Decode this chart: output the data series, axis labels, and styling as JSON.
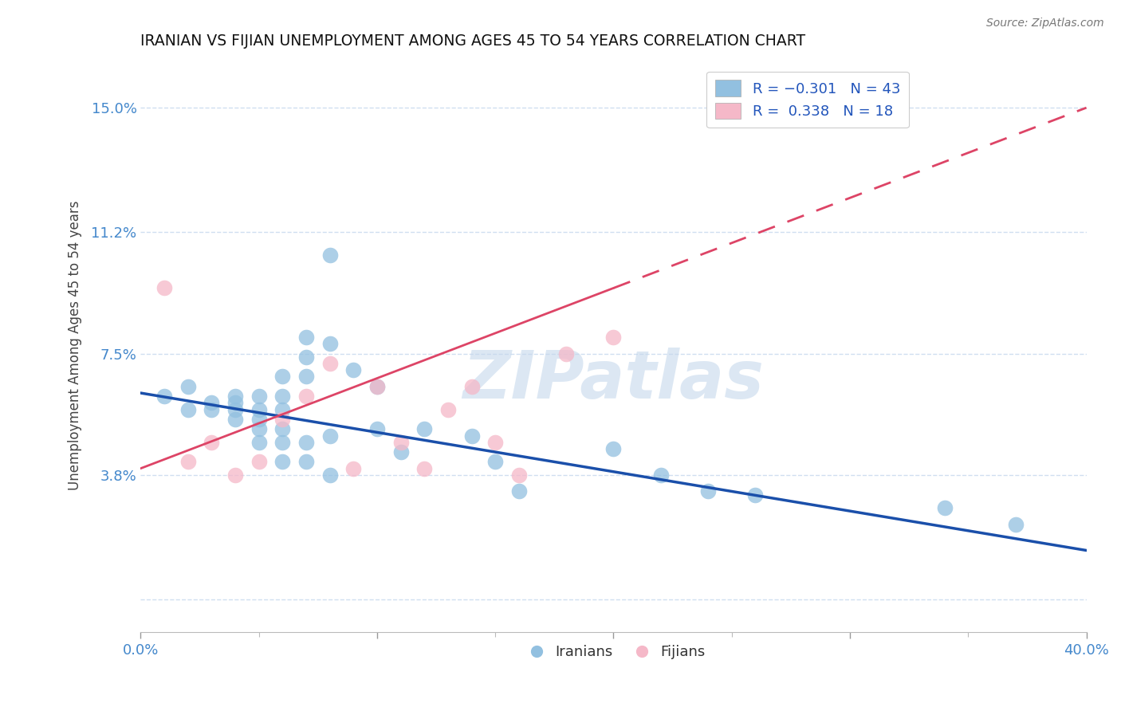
{
  "title": "IRANIAN VS FIJIAN UNEMPLOYMENT AMONG AGES 45 TO 54 YEARS CORRELATION CHART",
  "source": "Source: ZipAtlas.com",
  "ylabel_ticks": [
    0.0,
    0.038,
    0.075,
    0.112,
    0.15
  ],
  "ylabel_tick_labels": [
    "",
    "3.8%",
    "7.5%",
    "11.2%",
    "15.0%"
  ],
  "xlim": [
    0.0,
    0.4
  ],
  "ylim": [
    -0.01,
    0.165
  ],
  "watermark": "ZIPatlas",
  "iranian_color": "#92c0e0",
  "fijian_color": "#f5b8c8",
  "iranian_line_color": "#1a4faa",
  "fijian_line_color": "#dd4466",
  "background_color": "#ffffff",
  "grid_color": "#d0dff0",
  "iranians_x": [
    0.01,
    0.02,
    0.02,
    0.03,
    0.03,
    0.04,
    0.04,
    0.04,
    0.04,
    0.05,
    0.05,
    0.05,
    0.05,
    0.05,
    0.06,
    0.06,
    0.06,
    0.06,
    0.06,
    0.06,
    0.07,
    0.07,
    0.07,
    0.07,
    0.07,
    0.08,
    0.08,
    0.08,
    0.08,
    0.09,
    0.1,
    0.1,
    0.11,
    0.12,
    0.14,
    0.15,
    0.16,
    0.2,
    0.22,
    0.24,
    0.26,
    0.34,
    0.37
  ],
  "iranians_y": [
    0.062,
    0.058,
    0.065,
    0.06,
    0.058,
    0.055,
    0.058,
    0.06,
    0.062,
    0.048,
    0.052,
    0.055,
    0.058,
    0.062,
    0.042,
    0.048,
    0.052,
    0.058,
    0.062,
    0.068,
    0.042,
    0.048,
    0.068,
    0.074,
    0.08,
    0.038,
    0.05,
    0.078,
    0.105,
    0.07,
    0.052,
    0.065,
    0.045,
    0.052,
    0.05,
    0.042,
    0.033,
    0.046,
    0.038,
    0.033,
    0.032,
    0.028,
    0.023
  ],
  "fijians_x": [
    0.01,
    0.02,
    0.03,
    0.04,
    0.05,
    0.06,
    0.07,
    0.08,
    0.09,
    0.1,
    0.11,
    0.12,
    0.13,
    0.14,
    0.15,
    0.16,
    0.18,
    0.2
  ],
  "fijians_y": [
    0.095,
    0.042,
    0.048,
    0.038,
    0.042,
    0.055,
    0.062,
    0.072,
    0.04,
    0.065,
    0.048,
    0.04,
    0.058,
    0.065,
    0.048,
    0.038,
    0.075,
    0.08
  ],
  "iran_line_x0": 0.0,
  "iran_line_y0": 0.063,
  "iran_line_x1": 0.4,
  "iran_line_y1": 0.015,
  "fij_line_x0": 0.0,
  "fij_line_y0": 0.04,
  "fij_line_x1": 0.4,
  "fij_line_y1": 0.15
}
